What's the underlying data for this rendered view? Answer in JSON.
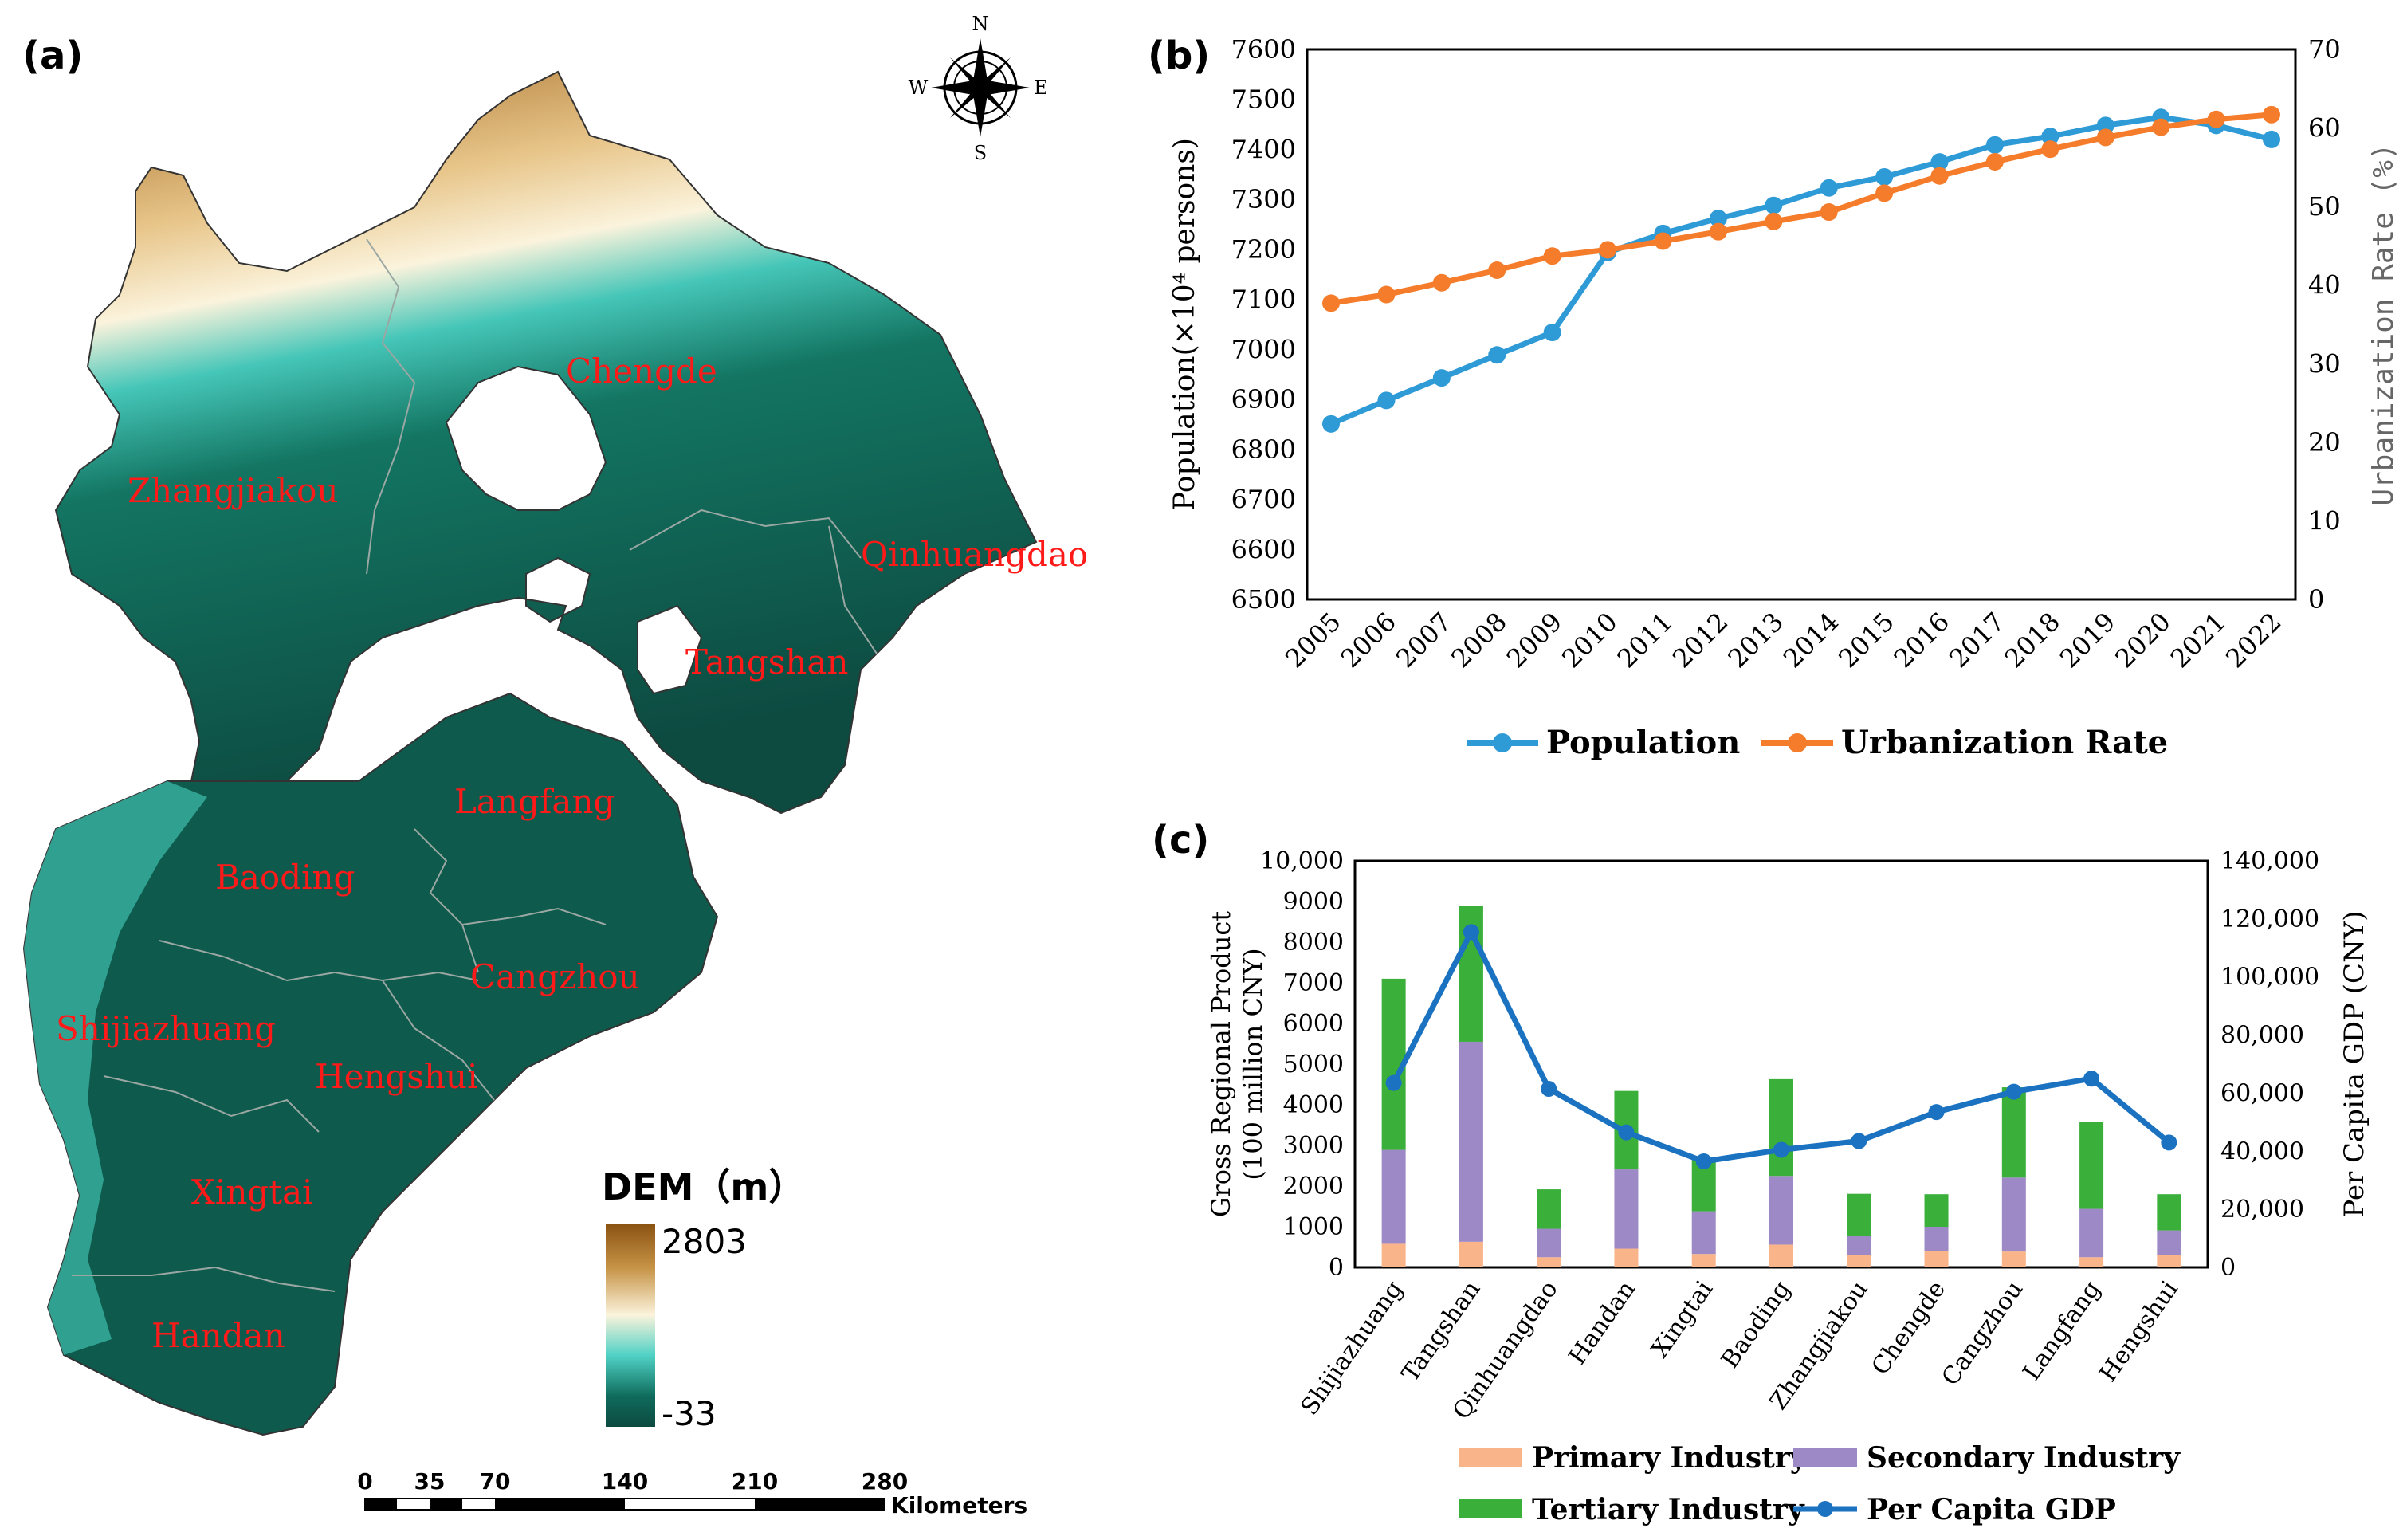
{
  "panels": {
    "a": {
      "label": "(a)",
      "compass": {
        "n": "N",
        "s": "S",
        "e": "E",
        "w": "W"
      },
      "legend": {
        "title": "DEM（m）",
        "max": "2803",
        "min": "-33",
        "colors": [
          "#8a5212",
          "#c79447",
          "#fbf3dc",
          "#4fd1c5",
          "#0f6b5c",
          "#0d4a40"
        ]
      },
      "scalebar": {
        "ticks": [
          "0",
          "35",
          "70",
          "140",
          "210",
          "280"
        ],
        "unit": "Kilometers"
      },
      "cities": [
        "Zhangjiakou",
        "Chengde",
        "Qinhuangdao",
        "Tangshan",
        "Langfang",
        "Baoding",
        "Cangzhou",
        "Shijiazhuang",
        "Hengshui",
        "Xingtai",
        "Handan"
      ]
    },
    "b": {
      "label": "(b)"
    },
    "c": {
      "label": "(c)"
    }
  },
  "chart_data": [
    {
      "type": "line",
      "panel": "b",
      "x": [
        "2005",
        "2006",
        "2007",
        "2008",
        "2009",
        "2010",
        "2011",
        "2012",
        "2013",
        "2014",
        "2015",
        "2016",
        "2017",
        "2018",
        "2019",
        "2020",
        "2021",
        "2022"
      ],
      "ylabel": "Population(×10⁴ persons)",
      "ylabel_right": "Urbanization Rate (%)",
      "ylim": [
        6500,
        7600
      ],
      "ylim_right": [
        0,
        70
      ],
      "yticks": [
        "6500",
        "6600",
        "6700",
        "6800",
        "6900",
        "7000",
        "7100",
        "7200",
        "7300",
        "7400",
        "7500",
        "7600"
      ],
      "yticks_right": [
        "0",
        "10",
        "20",
        "30",
        "40",
        "50",
        "60",
        "70"
      ],
      "series": [
        {
          "name": "Population",
          "axis": "left",
          "color": "#2e9ad6",
          "values": [
            6851,
            6898,
            6943,
            6989,
            7034,
            7194,
            7232,
            7262,
            7288,
            7323,
            7345,
            7375,
            7409,
            7426,
            7448,
            7464,
            7448,
            7420
          ]
        },
        {
          "name": "Urbanization Rate",
          "axis": "right",
          "color": "#f47c2a",
          "values": [
            37.7,
            38.8,
            40.3,
            41.9,
            43.7,
            44.5,
            45.6,
            46.8,
            48.1,
            49.3,
            51.7,
            53.9,
            55.7,
            57.3,
            58.8,
            60.1,
            61.1,
            61.7
          ]
        }
      ],
      "legend": "bottom",
      "grid": false
    },
    {
      "type": "bar",
      "panel": "c",
      "stacked": true,
      "categories": [
        "Shijiazhuang",
        "Tangshan",
        "Qinhuangdao",
        "Handan",
        "Xingtai",
        "Baoding",
        "Zhangjiakou",
        "Chengde",
        "Cangzhou",
        "Langfang",
        "Hengshui"
      ],
      "ylabel": "Gross Regional Product\n(100 million CNY)",
      "ylabel_right": "Per Capita GDP (CNY)",
      "ylim": [
        0,
        10000
      ],
      "ylim_right": [
        0,
        140000
      ],
      "yticks": [
        "0",
        "1000",
        "2000",
        "3000",
        "4000",
        "5000",
        "6000",
        "7000",
        "8000",
        "9000",
        "10,000"
      ],
      "yticks_right": [
        "0",
        "20,000",
        "40,000",
        "60,000",
        "80,000",
        "100,000",
        "120,000",
        "140,000"
      ],
      "series": [
        {
          "name": "Primary Industry",
          "color": "#f9b48a",
          "values": [
            580,
            630,
            250,
            460,
            330,
            560,
            300,
            400,
            390,
            250,
            300
          ]
        },
        {
          "name": "Secondary Industry",
          "color": "#9e89c7",
          "values": [
            2310,
            4920,
            700,
            1950,
            1050,
            1690,
            480,
            600,
            1820,
            1190,
            610
          ]
        },
        {
          "name": "Tertiary Industry",
          "color": "#3aaf3a",
          "values": [
            4210,
            3350,
            970,
            1930,
            1320,
            2380,
            1030,
            800,
            2220,
            2140,
            890
          ]
        },
        {
          "name": "Per Capita GDP",
          "type": "line",
          "axis": "right",
          "color": "#1a72c0",
          "values": [
            63500,
            115500,
            61500,
            46500,
            36500,
            40500,
            43500,
            53500,
            60500,
            65000,
            43000
          ]
        }
      ],
      "legend": "bottom",
      "grid": false
    }
  ]
}
